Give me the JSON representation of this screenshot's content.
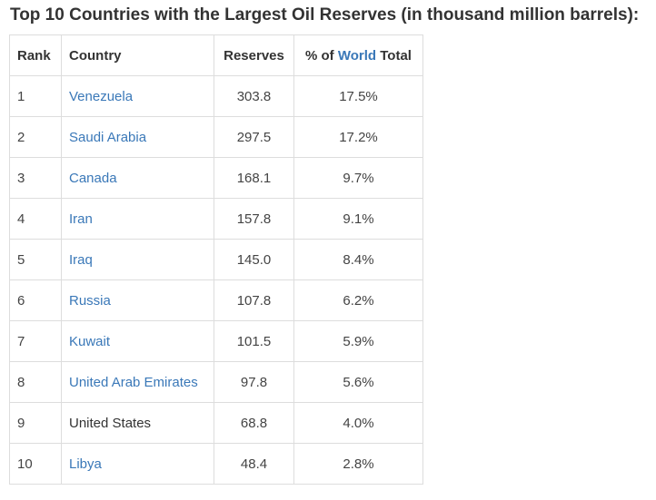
{
  "heading": "Top 10 Countries with the Largest Oil Reserves (in thousand million barrels):",
  "table": {
    "headers": {
      "rank": "Rank",
      "country": "Country",
      "reserves": "Reserves",
      "share_prefix": "% of ",
      "share_link": "World",
      "share_suffix": " Total"
    },
    "rows": [
      {
        "rank": "1",
        "country": "Venezuela",
        "country_is_link": true,
        "reserves": "303.8",
        "share": "17.5%"
      },
      {
        "rank": "2",
        "country": "Saudi Arabia",
        "country_is_link": true,
        "reserves": "297.5",
        "share": "17.2%"
      },
      {
        "rank": "3",
        "country": "Canada",
        "country_is_link": true,
        "reserves": "168.1",
        "share": "9.7%"
      },
      {
        "rank": "4",
        "country": "Iran",
        "country_is_link": true,
        "reserves": "157.8",
        "share": "9.1%"
      },
      {
        "rank": "5",
        "country": "Iraq",
        "country_is_link": true,
        "reserves": "145.0",
        "share": "8.4%"
      },
      {
        "rank": "6",
        "country": "Russia",
        "country_is_link": true,
        "reserves": "107.8",
        "share": "6.2%"
      },
      {
        "rank": "7",
        "country": "Kuwait",
        "country_is_link": true,
        "reserves": "101.5",
        "share": "5.9%"
      },
      {
        "rank": "8",
        "country": "United Arab Emirates",
        "country_is_link": true,
        "reserves": "97.8",
        "share": "5.6%"
      },
      {
        "rank": "9",
        "country": "United States",
        "country_is_link": false,
        "reserves": "68.8",
        "share": "4.0%"
      },
      {
        "rank": "10",
        "country": "Libya",
        "country_is_link": true,
        "reserves": "48.4",
        "share": "2.8%"
      }
    ]
  },
  "colors": {
    "link": "#3a78b8",
    "text": "#333333",
    "border": "#dddddd"
  }
}
